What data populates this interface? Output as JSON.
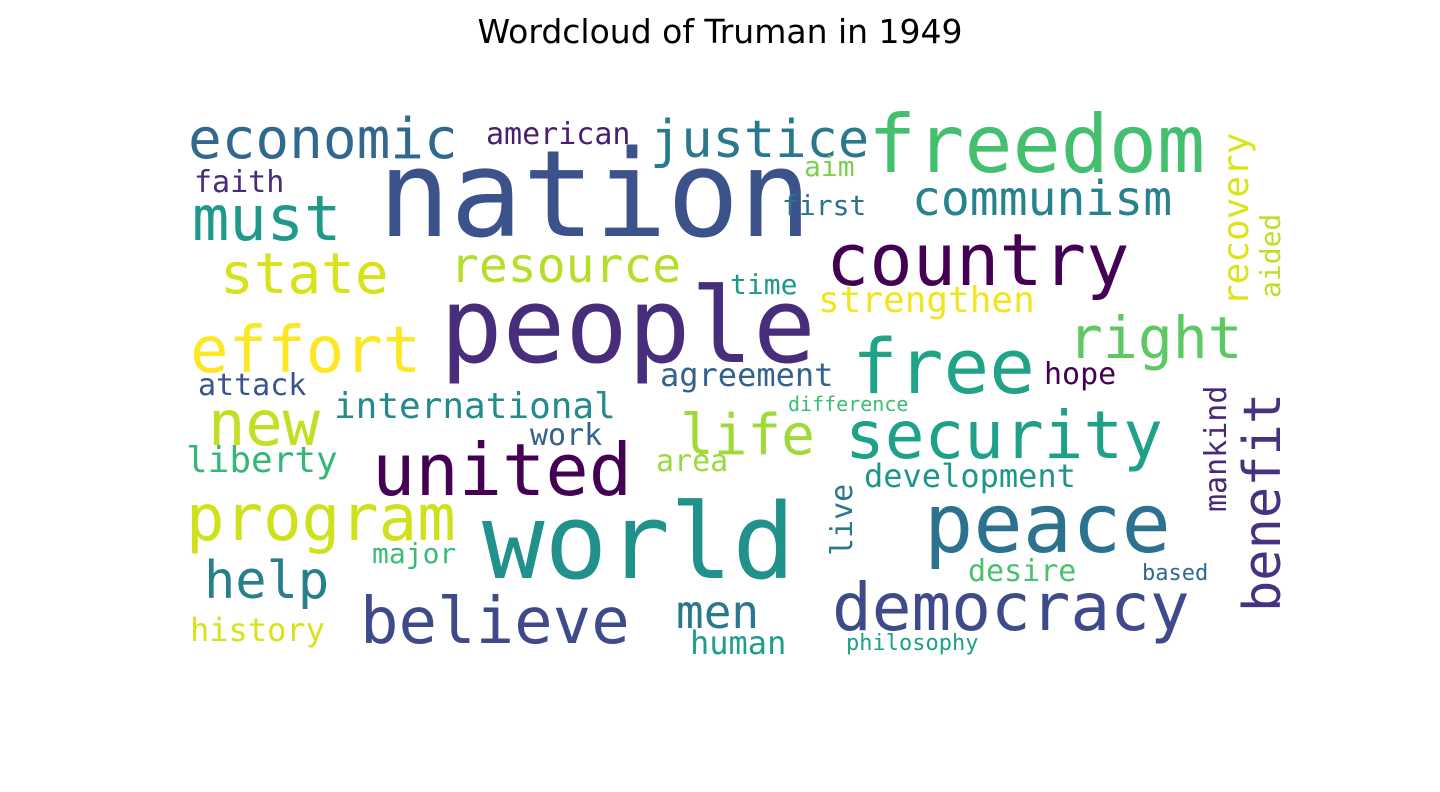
{
  "chart_data": {
    "type": "wordcloud",
    "title": "Wordcloud of Truman in 1949",
    "words": [
      {
        "text": "nation",
        "color": "#3b528b",
        "rank": 1
      },
      {
        "text": "people",
        "color": "#472d7b",
        "rank": 2
      },
      {
        "text": "world",
        "color": "#21918c",
        "rank": 3
      },
      {
        "text": "peace",
        "color": "#2c728e",
        "rank": 4
      },
      {
        "text": "freedom",
        "color": "#44bf70",
        "rank": 5
      },
      {
        "text": "country",
        "color": "#440154",
        "rank": 6
      },
      {
        "text": "united",
        "color": "#440154",
        "rank": 7
      },
      {
        "text": "security",
        "color": "#1fa187",
        "rank": 8
      },
      {
        "text": "free",
        "color": "#20a386",
        "rank": 9
      },
      {
        "text": "democracy",
        "color": "#3e4a89",
        "rank": 10
      },
      {
        "text": "believe",
        "color": "#3e4a89",
        "rank": 11
      },
      {
        "text": "program",
        "color": "#d0e11c",
        "rank": 12
      },
      {
        "text": "effort",
        "color": "#fde725",
        "rank": 13
      },
      {
        "text": "economic",
        "color": "#31688e",
        "rank": 14
      },
      {
        "text": "must",
        "color": "#1f9a8a",
        "rank": 15
      },
      {
        "text": "justice",
        "color": "#2a788e",
        "rank": 16
      },
      {
        "text": "state",
        "color": "#d8e219",
        "rank": 17
      },
      {
        "text": "new",
        "color": "#c2df23",
        "rank": 18
      },
      {
        "text": "benefit",
        "color": "#46327e",
        "rank": 19
      },
      {
        "text": "right",
        "color": "#5ec962",
        "rank": 20
      },
      {
        "text": "resource",
        "color": "#b5de2b",
        "rank": 21
      },
      {
        "text": "life",
        "color": "#a0da39",
        "rank": 22
      },
      {
        "text": "communism",
        "color": "#26828e",
        "rank": 23
      },
      {
        "text": "help",
        "color": "#277f8e",
        "rank": 24
      },
      {
        "text": "men",
        "color": "#2a788e",
        "rank": 25
      },
      {
        "text": "international",
        "color": "#238a8d",
        "rank": 26
      },
      {
        "text": "development",
        "color": "#1f968b",
        "rank": 27
      },
      {
        "text": "recovery",
        "color": "#dde318",
        "rank": 28
      },
      {
        "text": "strengthen",
        "color": "#f1e51d",
        "rank": 29
      },
      {
        "text": "liberty",
        "color": "#35b779",
        "rank": 30
      },
      {
        "text": "agreement",
        "color": "#33638d",
        "rank": 31
      },
      {
        "text": "mankind",
        "color": "#482878",
        "rank": 32
      },
      {
        "text": "american",
        "color": "#481f70",
        "rank": 33
      },
      {
        "text": "history",
        "color": "#d8e219",
        "rank": 34
      },
      {
        "text": "human",
        "color": "#1f9e89",
        "rank": 35
      },
      {
        "text": "attack",
        "color": "#39558c",
        "rank": 36
      },
      {
        "text": "faith",
        "color": "#472c7a",
        "rank": 37
      },
      {
        "text": "work",
        "color": "#34618d",
        "rank": 38
      },
      {
        "text": "hope",
        "color": "#440154",
        "rank": 39
      },
      {
        "text": "desire",
        "color": "#4ac16d",
        "rank": 40
      },
      {
        "text": "major",
        "color": "#3bbb75",
        "rank": 41
      },
      {
        "text": "area",
        "color": "#9bd93c",
        "rank": 42
      },
      {
        "text": "aided",
        "color": "#bddf26",
        "rank": 43
      },
      {
        "text": "live",
        "color": "#2a788e",
        "rank": 44
      },
      {
        "text": "first",
        "color": "#2c728e",
        "rank": 45
      },
      {
        "text": "time",
        "color": "#1f988b",
        "rank": 46
      },
      {
        "text": "aim",
        "color": "#7ad151",
        "rank": 47
      },
      {
        "text": "based",
        "color": "#31688e",
        "rank": 48
      },
      {
        "text": "difference",
        "color": "#3dbc74",
        "rank": 49
      },
      {
        "text": "philosophy",
        "color": "#1fa088",
        "rank": 50
      }
    ]
  }
}
